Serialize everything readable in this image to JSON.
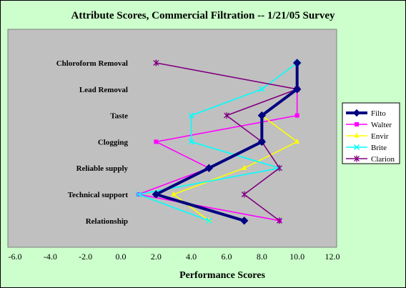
{
  "chart_data": {
    "type": "line",
    "title": "Attribute Scores, Commercial Filtration --  1/21/05 Survey",
    "xlabel": "Performance Scores",
    "ylabel": "",
    "xlim": [
      -6,
      12
    ],
    "xticks": [
      "-6.0",
      "-4.0",
      "-2.0",
      "0.0",
      "2.0",
      "4.0",
      "6.0",
      "8.0",
      "10.0",
      "12.0"
    ],
    "categories": [
      "Chloroform Removal",
      "Lead Removal",
      "Taste",
      "Clogging",
      "Reliable supply",
      "Technical support",
      "Relationship"
    ],
    "series": [
      {
        "name": "Filto",
        "color": "#000080",
        "marker": "diamond",
        "values": [
          10,
          10,
          8,
          8,
          5,
          2,
          7
        ]
      },
      {
        "name": "Walter",
        "color": "#ff00ff",
        "marker": "square",
        "values": [
          10,
          10,
          10,
          2,
          5,
          1,
          9
        ]
      },
      {
        "name": "Envir",
        "color": "#ffff00",
        "marker": "triangle",
        "values": [
          10,
          10,
          8,
          10,
          7,
          3,
          5
        ]
      },
      {
        "name": "Brite",
        "color": "#00ffff",
        "marker": "x",
        "values": [
          10,
          8,
          4,
          4,
          9,
          1,
          5
        ]
      },
      {
        "name": "Clarion",
        "color": "#800080",
        "marker": "star",
        "values": [
          2,
          10,
          6,
          8,
          9,
          7,
          9
        ]
      }
    ],
    "legend_position": "right",
    "grid": false,
    "plot_background": "#c0c0c0"
  }
}
